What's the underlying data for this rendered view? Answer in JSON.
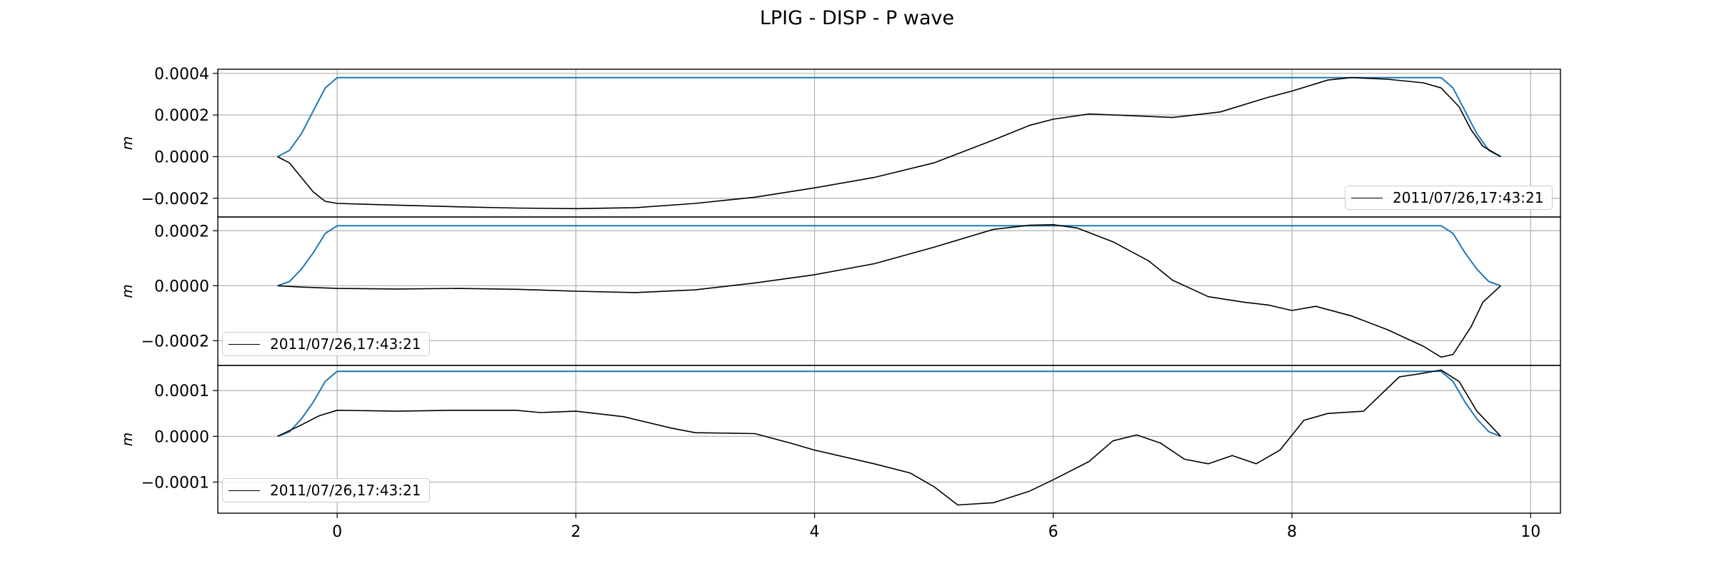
{
  "title": "LPIG - DISP - P wave",
  "colors": {
    "window": "#1f77b4",
    "trace": "#000000",
    "grid": "#b0b0b0"
  },
  "chart_data": [
    {
      "type": "line",
      "ylabel": "m",
      "xlim": [
        -1.0,
        10.25
      ],
      "ylim": [
        -0.00029,
        0.00042
      ],
      "yticks": [
        "0.0004",
        "0.0002",
        "0.0000",
        "−0.0002"
      ],
      "ytick_values": [
        0.0004,
        0.0002,
        0.0,
        -0.0002
      ],
      "grid": true,
      "legend": {
        "placement": "lower-right",
        "label": "2011/07/26,17:43:21"
      },
      "series": [
        {
          "name": "",
          "color": "#1f77b4",
          "x": [
            -0.5,
            -0.4,
            -0.3,
            -0.2,
            -0.1,
            0.0,
            9.25,
            9.35,
            9.45,
            9.55,
            9.65,
            9.75
          ],
          "y": [
            0.0,
            3e-05,
            0.00011,
            0.00022,
            0.00033,
            0.00038,
            0.00038,
            0.00033,
            0.00022,
            0.00011,
            3e-05,
            0.0
          ]
        },
        {
          "name": "2011/07/26,17:43:21",
          "color": "#000000",
          "x": [
            -0.5,
            -0.4,
            -0.3,
            -0.2,
            -0.1,
            0.0,
            0.5,
            1.0,
            1.5,
            2.0,
            2.5,
            3.0,
            3.5,
            4.0,
            4.5,
            5.0,
            5.5,
            5.8,
            6.0,
            6.3,
            6.6,
            7.0,
            7.4,
            7.8,
            8.0,
            8.3,
            8.5,
            8.8,
            9.1,
            9.25,
            9.4,
            9.5,
            9.6,
            9.75
          ],
          "y": [
            0.0,
            -3e-05,
            -0.0001,
            -0.00017,
            -0.000215,
            -0.000225,
            -0.000233,
            -0.000241,
            -0.000247,
            -0.00025,
            -0.000245,
            -0.000225,
            -0.000195,
            -0.00015,
            -0.0001,
            -3e-05,
            8e-05,
            0.00015,
            0.00018,
            0.000205,
            0.000198,
            0.000188,
            0.000215,
            0.000285,
            0.000315,
            0.000368,
            0.00038,
            0.000372,
            0.000355,
            0.00033,
            0.00024,
            0.00013,
            5e-05,
            0.0
          ]
        }
      ]
    },
    {
      "type": "line",
      "ylabel": "m",
      "xlim": [
        -1.0,
        10.25
      ],
      "ylim": [
        -0.00029,
        0.00025
      ],
      "yticks": [
        "0.0002",
        "0.0000",
        "−0.0002"
      ],
      "ytick_values": [
        0.0002,
        0.0,
        -0.0002
      ],
      "grid": true,
      "legend": {
        "placement": "lower-left",
        "label": "2011/07/26,17:43:21"
      },
      "series": [
        {
          "name": "",
          "color": "#1f77b4",
          "x": [
            -0.5,
            -0.4,
            -0.3,
            -0.2,
            -0.1,
            0.0,
            9.25,
            9.35,
            9.45,
            9.55,
            9.65,
            9.75
          ],
          "y": [
            0.0,
            1.5e-05,
            6e-05,
            0.00012,
            0.00019,
            0.000218,
            0.000218,
            0.00019,
            0.00012,
            6e-05,
            1.5e-05,
            0.0
          ]
        },
        {
          "name": "2011/07/26,17:43:21",
          "color": "#000000",
          "x": [
            -0.5,
            -0.3,
            0.0,
            0.5,
            1.0,
            1.5,
            2.0,
            2.5,
            3.0,
            3.5,
            4.0,
            4.5,
            5.0,
            5.5,
            5.8,
            6.0,
            6.2,
            6.5,
            6.8,
            7.0,
            7.3,
            7.6,
            7.8,
            8.0,
            8.2,
            8.5,
            8.8,
            9.1,
            9.25,
            9.35,
            9.5,
            9.6,
            9.75
          ],
          "y": [
            0.0,
            -5e-06,
            -1e-05,
            -1.2e-05,
            -1e-05,
            -1.3e-05,
            -2e-05,
            -2.5e-05,
            -1.5e-05,
            1e-05,
            4e-05,
            8e-05,
            0.00014,
            0.000205,
            0.00022,
            0.000222,
            0.00021,
            0.00016,
            9e-05,
            2e-05,
            -4e-05,
            -6e-05,
            -7e-05,
            -9e-05,
            -7.5e-05,
            -0.00011,
            -0.00016,
            -0.00022,
            -0.00026,
            -0.00025,
            -0.00015,
            -6e-05,
            0.0
          ]
        }
      ]
    },
    {
      "type": "line",
      "ylabel": "m",
      "xlim": [
        -1.0,
        10.25
      ],
      "ylim": [
        -0.000168,
        0.000155
      ],
      "yticks": [
        "0.0001",
        "0.0000",
        "−0.0001"
      ],
      "ytick_values": [
        0.0001,
        0.0,
        -0.0001
      ],
      "xticks": [
        "0",
        "2",
        "4",
        "6",
        "8",
        "10"
      ],
      "xtick_values": [
        0,
        2,
        4,
        6,
        8,
        10
      ],
      "grid": true,
      "legend": {
        "placement": "lower-left",
        "label": "2011/07/26,17:43:21"
      },
      "series": [
        {
          "name": "",
          "color": "#1f77b4",
          "x": [
            -0.5,
            -0.4,
            -0.3,
            -0.2,
            -0.1,
            0.0,
            9.25,
            9.35,
            9.45,
            9.55,
            9.65,
            9.75
          ],
          "y": [
            0.0,
            1e-05,
            3.8e-05,
            7.5e-05,
            0.00012,
            0.000142,
            0.000142,
            0.00012,
            7.5e-05,
            3.8e-05,
            1e-05,
            0.0
          ]
        },
        {
          "name": "2011/07/26,17:43:21",
          "color": "#000000",
          "x": [
            -0.5,
            -0.3,
            -0.15,
            0.0,
            0.5,
            1.0,
            1.5,
            1.7,
            2.0,
            2.4,
            2.8,
            3.0,
            3.5,
            3.8,
            4.0,
            4.5,
            4.8,
            5.0,
            5.2,
            5.5,
            5.8,
            6.0,
            6.3,
            6.5,
            6.7,
            6.9,
            7.1,
            7.3,
            7.5,
            7.7,
            7.9,
            8.1,
            8.3,
            8.6,
            8.9,
            9.1,
            9.25,
            9.4,
            9.55,
            9.75
          ],
          "y": [
            0.0,
            2.5e-05,
            4.5e-05,
            5.7e-05,
            5.5e-05,
            5.7e-05,
            5.7e-05,
            5.2e-05,
            5.5e-05,
            4.3e-05,
            1.8e-05,
            8e-06,
            6e-06,
            -1.5e-05,
            -3e-05,
            -6e-05,
            -8e-05,
            -0.00011,
            -0.00015,
            -0.000145,
            -0.00012,
            -9.5e-05,
            -5.5e-05,
            -1e-05,
            3e-06,
            -1.5e-05,
            -5e-05,
            -6e-05,
            -4.2e-05,
            -6e-05,
            -3e-05,
            3.5e-05,
            5e-05,
            5.5e-05,
            0.00013,
            0.000138,
            0.000145,
            0.00012,
            5.5e-05,
            0.0
          ]
        }
      ]
    }
  ]
}
